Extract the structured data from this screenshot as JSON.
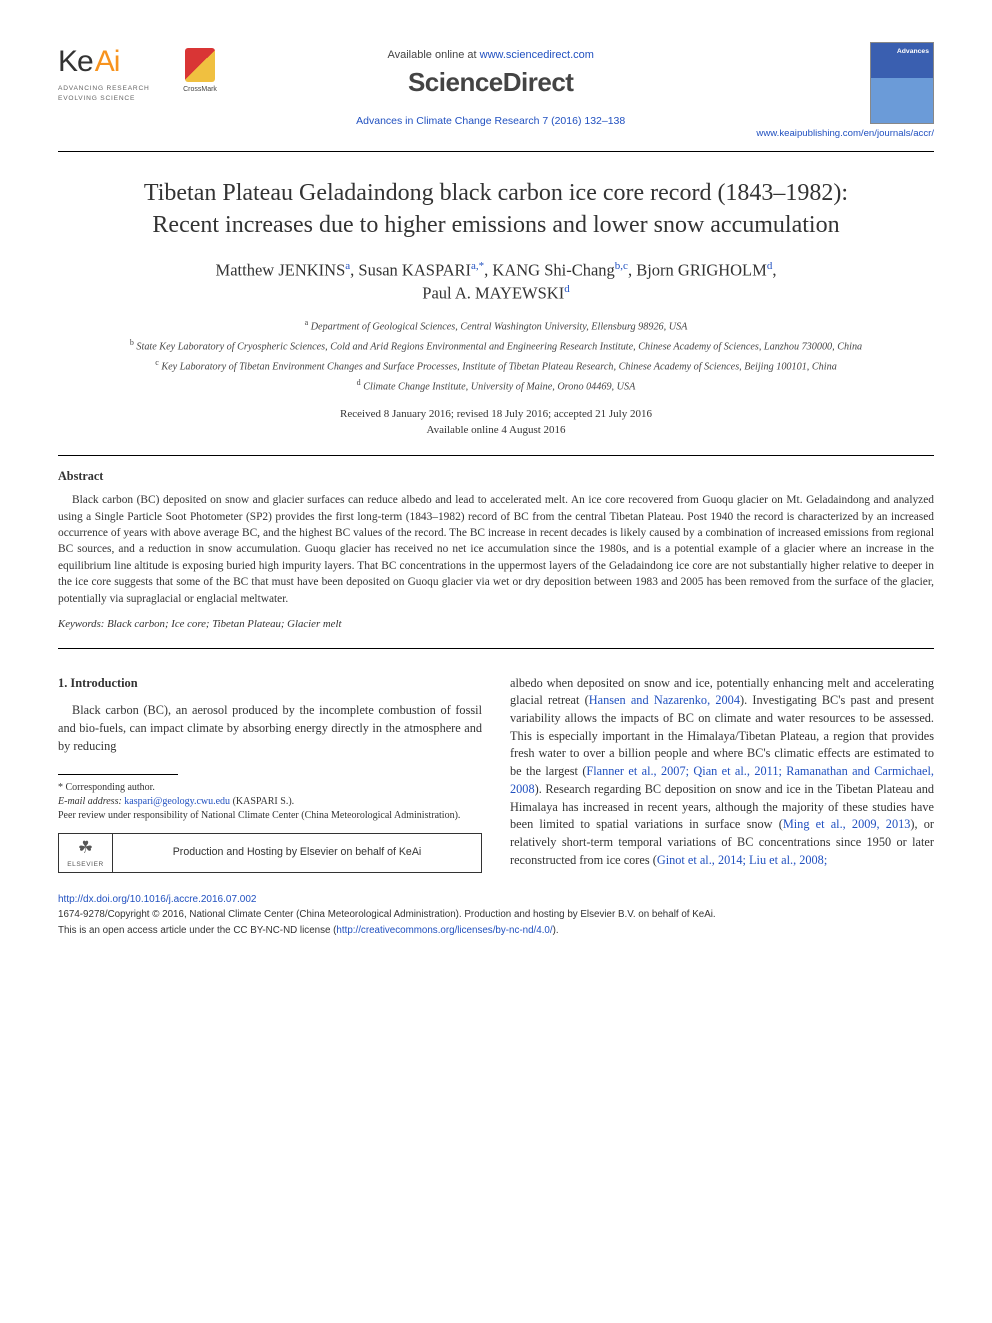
{
  "header": {
    "keai_tagline1": "ADVANCING RESEARCH",
    "keai_tagline2": "EVOLVING SCIENCE",
    "crossmark_label": "CrossMark",
    "available_prefix": "Available online at ",
    "available_url": "www.sciencedirect.com",
    "sd_logo": "ScienceDirect",
    "citation": "Advances in Climate Change Research 7 (2016) 132–138",
    "journal_cover_title": "Advances",
    "journal_url": "www.keaipublishing.com/en/journals/accr/"
  },
  "title_line1": "Tibetan Plateau Geladaindong black carbon ice core record (1843–1982):",
  "title_line2": "Recent increases due to higher emissions and lower snow accumulation",
  "authors": {
    "a1_name": "Matthew JENKINS",
    "a1_sup": "a",
    "a2_name": "Susan KASPARI",
    "a2_sup": "a,*",
    "a3_name": "KANG Shi-Chang",
    "a3_sup": "b,c",
    "a4_name": "Bjorn GRIGHOLM",
    "a4_sup": "d",
    "a5_name": "Paul A. MAYEWSKI",
    "a5_sup": "d"
  },
  "affiliations": {
    "a": "Department of Geological Sciences, Central Washington University, Ellensburg 98926, USA",
    "b": "State Key Laboratory of Cryospheric Sciences, Cold and Arid Regions Environmental and Engineering Research Institute, Chinese Academy of Sciences, Lanzhou 730000, China",
    "c": "Key Laboratory of Tibetan Environment Changes and Surface Processes, Institute of Tibetan Plateau Research, Chinese Academy of Sciences, Beijing 100101, China",
    "d": "Climate Change Institute, University of Maine, Orono 04469, USA"
  },
  "dates": {
    "line1": "Received 8 January 2016; revised 18 July 2016; accepted 21 July 2016",
    "line2": "Available online 4 August 2016"
  },
  "abstract": {
    "heading": "Abstract",
    "text": "Black carbon (BC) deposited on snow and glacier surfaces can reduce albedo and lead to accelerated melt. An ice core recovered from Guoqu glacier on Mt. Geladaindong and analyzed using a Single Particle Soot Photometer (SP2) provides the first long-term (1843–1982) record of BC from the central Tibetan Plateau. Post 1940 the record is characterized by an increased occurrence of years with above average BC, and the highest BC values of the record. The BC increase in recent decades is likely caused by a combination of increased emissions from regional BC sources, and a reduction in snow accumulation. Guoqu glacier has received no net ice accumulation since the 1980s, and is a potential example of a glacier where an increase in the equilibrium line altitude is exposing buried high impurity layers. That BC concentrations in the uppermost layers of the Geladaindong ice core are not substantially higher relative to deeper in the ice core suggests that some of the BC that must have been deposited on Guoqu glacier via wet or dry deposition between 1983 and 2005 has been removed from the surface of the glacier, potentially via supraglacial or englacial meltwater."
  },
  "keywords": {
    "label": "Keywords:",
    "text": " Black carbon; Ice core; Tibetan Plateau; Glacier melt"
  },
  "intro": {
    "heading": "1. Introduction",
    "col1_p1": "Black carbon (BC), an aerosol produced by the incomplete combustion of fossil and bio-fuels, can impact climate by absorbing energy directly in the atmosphere and by reducing",
    "col2_p1a": "albedo when deposited on snow and ice, potentially enhancing melt and accelerating glacial retreat (",
    "col2_cite1": "Hansen and Nazarenko, 2004",
    "col2_p1b": "). Investigating BC's past and present variability allows the impacts of BC on climate and water resources to be assessed. This is especially important in the Himalaya/Tibetan Plateau, a region that provides fresh water to over a billion people and where BC's climatic effects are estimated to be the largest (",
    "col2_cite2": "Flanner et al., 2007; Qian et al., 2011; Ramanathan and Carmichael, 2008",
    "col2_p1c": "). Research regarding BC deposition on snow and ice in the Tibetan Plateau and Himalaya has increased in recent years, although the majority of these studies have been limited to spatial variations in surface snow (",
    "col2_cite3": "Ming et al., 2009, 2013",
    "col2_p1d": "), or relatively short-term temporal variations of BC concentrations since 1950 or later reconstructed from ice cores (",
    "col2_cite4": "Ginot et al., 2014; Liu et al., 2008;"
  },
  "footnotes": {
    "corresponding": "* Corresponding author.",
    "email_label": "E-mail address: ",
    "email": "kaspari@geology.cwu.edu",
    "email_suffix": " (KASPARI S.).",
    "peer_review": "Peer review under responsibility of National Climate Center (China Meteorological Administration).",
    "elsevier_label": "ELSEVIER",
    "prodbox_text": "Production and Hosting by Elsevier on behalf of KeAi"
  },
  "footer": {
    "doi": "http://dx.doi.org/10.1016/j.accre.2016.07.002",
    "copyright1": "1674-9278/Copyright © 2016, National Climate Center (China Meteorological Administration). Production and hosting by Elsevier B.V. on behalf of KeAi.",
    "copyright2a": "This is an open access article under the CC BY-NC-ND license (",
    "copyright2_link": "http://creativecommons.org/licenses/by-nc-nd/4.0/",
    "copyright2b": ")."
  },
  "colors": {
    "link_blue": "#2050c0",
    "keai_orange": "#f7931e",
    "text": "#333333",
    "background": "#ffffff"
  }
}
